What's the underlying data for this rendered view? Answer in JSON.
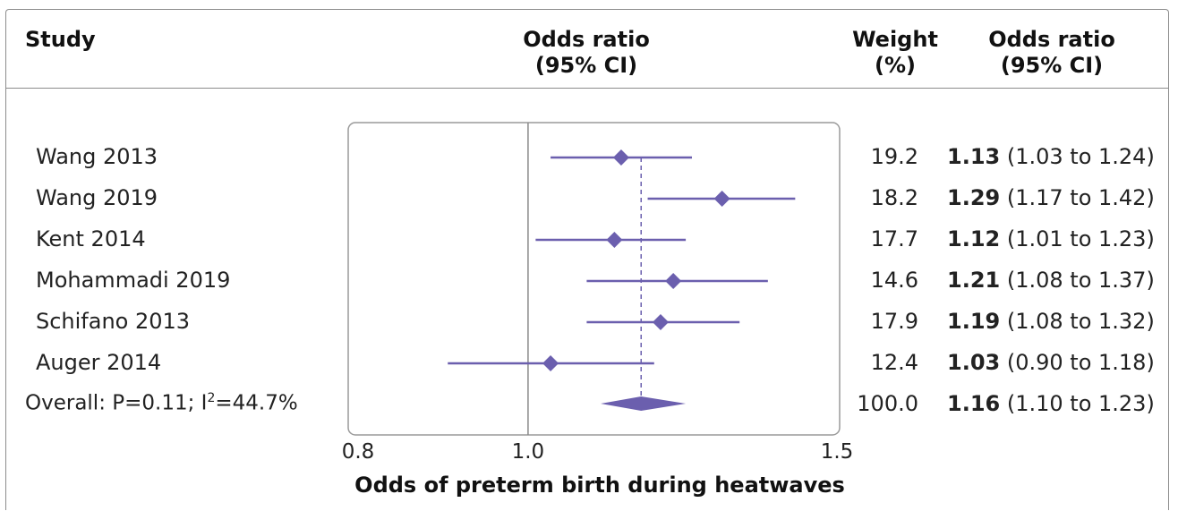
{
  "header": {
    "study": "Study",
    "or_plot_line1": "Odds ratio",
    "or_plot_line2": "(95% CI)",
    "weight_line1": "Weight",
    "weight_line2": "(%)",
    "or_text_line1": "Odds ratio",
    "or_text_line2": "(95% CI)"
  },
  "rows": [
    {
      "study": "Wang 2013",
      "weight": "19.2",
      "or": "1.13",
      "ci": "(1.03 to 1.24)"
    },
    {
      "study": "Wang 2019",
      "weight": "18.2",
      "or": "1.29",
      "ci": "(1.17 to 1.42)"
    },
    {
      "study": "Kent 2014",
      "weight": "17.7",
      "or": "1.12",
      "ci": "(1.01 to 1.23)"
    },
    {
      "study": "Mohammadi 2019",
      "weight": "14.6",
      "or": "1.21",
      "ci": "(1.08 to 1.37)"
    },
    {
      "study": "Schifano 2013",
      "weight": "17.9",
      "or": "1.19",
      "ci": "(1.08 to 1.32)"
    },
    {
      "study": "Auger 2014",
      "weight": "12.4",
      "or": "1.03",
      "ci": "(0.90 to 1.18)"
    }
  ],
  "overall": {
    "label_prefix": "Overall: P=0.11; I",
    "label_sup": "2",
    "label_suffix": "=44.7%",
    "weight": "100.0",
    "or": "1.16",
    "ci": "(1.10 to 1.23)"
  },
  "chart_data": {
    "type": "forest",
    "xlabel": "Odds of preterm birth during heatwaves",
    "x_scale": "log",
    "xlim": [
      0.8,
      1.5
    ],
    "ticks": [
      {
        "value": 0.8,
        "label": "0.8"
      },
      {
        "value": 1.0,
        "label": "1.0"
      },
      {
        "value": 1.5,
        "label": "1.5"
      }
    ],
    "reference_line": 1.0,
    "pooled_line": 1.16,
    "studies": [
      {
        "name": "Wang 2013",
        "or": 1.13,
        "lo": 1.03,
        "hi": 1.24,
        "weight": 19.2
      },
      {
        "name": "Wang 2019",
        "or": 1.29,
        "lo": 1.17,
        "hi": 1.42,
        "weight": 18.2
      },
      {
        "name": "Kent 2014",
        "or": 1.12,
        "lo": 1.01,
        "hi": 1.23,
        "weight": 17.7
      },
      {
        "name": "Mohammadi 2019",
        "or": 1.21,
        "lo": 1.08,
        "hi": 1.37,
        "weight": 14.6
      },
      {
        "name": "Schifano 2013",
        "or": 1.19,
        "lo": 1.08,
        "hi": 1.32,
        "weight": 17.9
      },
      {
        "name": "Auger 2014",
        "or": 1.03,
        "lo": 0.9,
        "hi": 1.18,
        "weight": 12.4
      }
    ],
    "overall": {
      "or": 1.16,
      "lo": 1.1,
      "hi": 1.23
    },
    "colors": {
      "marker": "#6b5fae",
      "reference": "#8a8a8a",
      "box": "#9a9a9a"
    }
  }
}
